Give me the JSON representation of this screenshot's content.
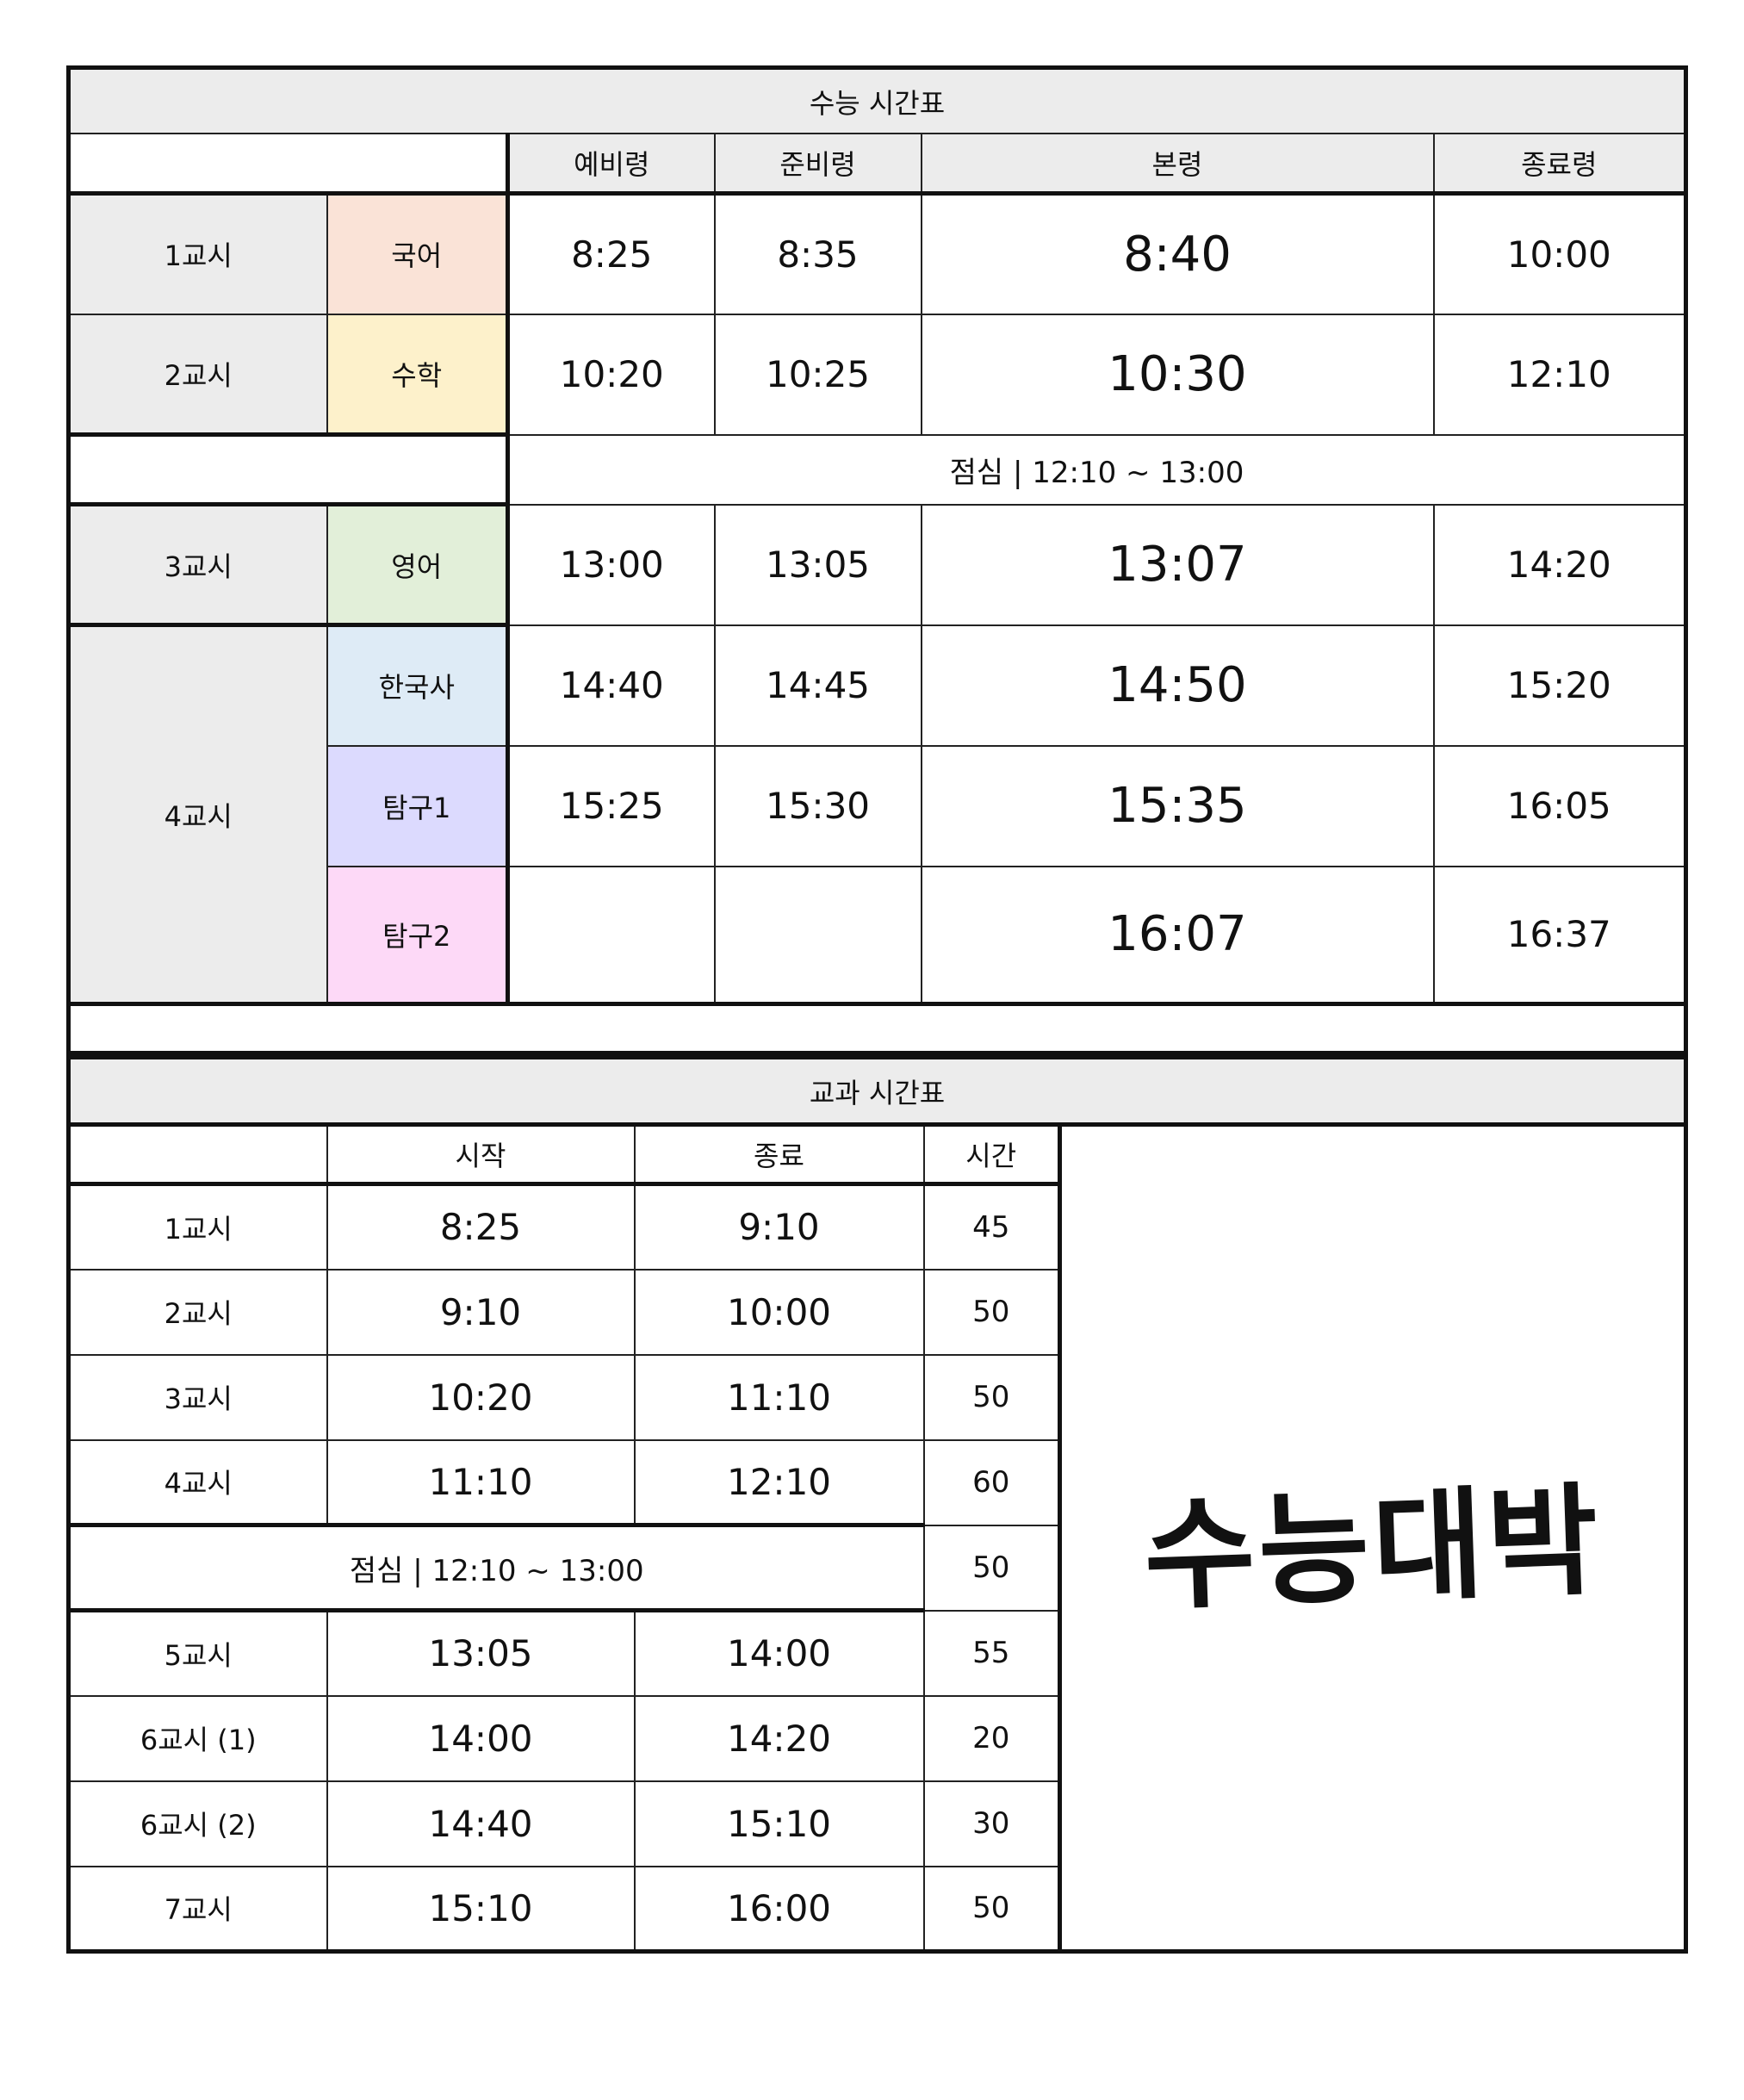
{
  "exam": {
    "title": "수능 시간표",
    "columns": [
      "예비령",
      "준비령",
      "본령",
      "종료령"
    ],
    "lunch": "점심 | 12:10 ~ 13:00",
    "rows": [
      {
        "period": "1교시",
        "subject": "국어",
        "subject_color": "#fae3d7",
        "prep": "8:25",
        "ready": "8:35",
        "main": "8:40",
        "end": "10:00"
      },
      {
        "period": "2교시",
        "subject": "수학",
        "subject_color": "#fdf1cb",
        "prep": "10:20",
        "ready": "10:25",
        "main": "10:30",
        "end": "12:10"
      },
      {
        "period": "3교시",
        "subject": "영어",
        "subject_color": "#e2efd9",
        "prep": "13:00",
        "ready": "13:05",
        "main": "13:07",
        "end": "14:20"
      },
      {
        "period": "4교시",
        "subject": "한국사",
        "subject_color": "#deebf6",
        "prep": "14:40",
        "ready": "14:45",
        "main": "14:50",
        "end": "15:20"
      },
      {
        "period": "",
        "subject": "탐구1",
        "subject_color": "#dcdafe",
        "prep": "15:25",
        "ready": "15:30",
        "main": "15:35",
        "end": "16:05"
      },
      {
        "period": "",
        "subject": "탐구2",
        "subject_color": "#fdd9f7",
        "prep": "",
        "ready": "",
        "main": "16:07",
        "end": "16:37"
      }
    ]
  },
  "school": {
    "title": "교과 시간표",
    "columns": [
      "",
      "시작",
      "종료",
      "시간"
    ],
    "lunch": "점심 | 12:10 ~ 13:00",
    "lunch_minutes": "50",
    "rows": [
      {
        "period": "1교시",
        "start": "8:25",
        "end": "9:10",
        "minutes": "45"
      },
      {
        "period": "2교시",
        "start": "9:10",
        "end": "10:00",
        "minutes": "50"
      },
      {
        "period": "3교시",
        "start": "10:20",
        "end": "11:10",
        "minutes": "50"
      },
      {
        "period": "4교시",
        "start": "11:10",
        "end": "12:10",
        "minutes": "60"
      },
      {
        "period": "5교시",
        "start": "13:05",
        "end": "14:00",
        "minutes": "55"
      },
      {
        "period": "6교시 (1)",
        "start": "14:00",
        "end": "14:20",
        "minutes": "20"
      },
      {
        "period": "6교시 (2)",
        "start": "14:40",
        "end": "15:10",
        "minutes": "30"
      },
      {
        "period": "7교시",
        "start": "15:10",
        "end": "16:00",
        "minutes": "50"
      }
    ],
    "cheer": "수능대박"
  },
  "colors": {
    "header_grey": "#ececec",
    "border": "#111111"
  }
}
